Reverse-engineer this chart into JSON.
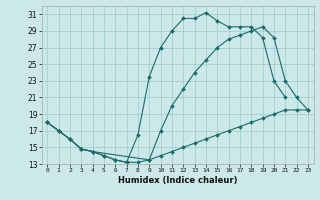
{
  "xlabel": "Humidex (Indice chaleur)",
  "bg_color": "#cce8e8",
  "grid_color": "#99cccc",
  "line_color": "#1a6b6b",
  "xmin": -0.5,
  "xmax": 23.5,
  "ymin": 13,
  "ymax": 32,
  "yticks": [
    13,
    15,
    17,
    19,
    21,
    23,
    25,
    27,
    29,
    31
  ],
  "xticks": [
    0,
    1,
    2,
    3,
    4,
    5,
    6,
    7,
    8,
    9,
    10,
    11,
    12,
    13,
    14,
    15,
    16,
    17,
    18,
    19,
    20,
    21,
    22,
    23
  ],
  "series": [
    {
      "x": [
        0,
        1,
        2,
        3,
        4,
        5,
        6,
        7,
        8,
        9,
        10,
        11,
        12,
        13,
        14,
        15,
        16,
        17,
        18,
        19,
        20,
        21,
        22,
        23
      ],
      "y": [
        18,
        17,
        16,
        14.8,
        14.5,
        14,
        13.5,
        13.2,
        13.2,
        13.5,
        14,
        14.5,
        15,
        15.5,
        16,
        16.5,
        17,
        17.5,
        18,
        18.5,
        19,
        19.5,
        19.5,
        19.5
      ]
    },
    {
      "x": [
        0,
        1,
        2,
        3,
        4,
        5,
        6,
        7,
        8,
        9,
        10,
        11,
        12,
        13,
        14,
        15,
        16,
        17,
        18,
        19,
        20,
        21
      ],
      "y": [
        18,
        17,
        16,
        14.8,
        14.5,
        14,
        13.5,
        13.2,
        16.5,
        23.5,
        27,
        29,
        30.5,
        30.5,
        31.2,
        30.2,
        29.5,
        29.5,
        29.5,
        28.2,
        23,
        21
      ]
    },
    {
      "x": [
        0,
        1,
        2,
        3,
        4,
        9,
        10,
        11,
        12,
        13,
        14,
        15,
        16,
        17,
        18,
        19,
        20,
        21,
        22,
        23
      ],
      "y": [
        18,
        17,
        16,
        14.8,
        14.5,
        13.5,
        17,
        20,
        22,
        24,
        25.5,
        27,
        28,
        28.5,
        29,
        29.5,
        28.2,
        23,
        21,
        19.5
      ]
    }
  ]
}
